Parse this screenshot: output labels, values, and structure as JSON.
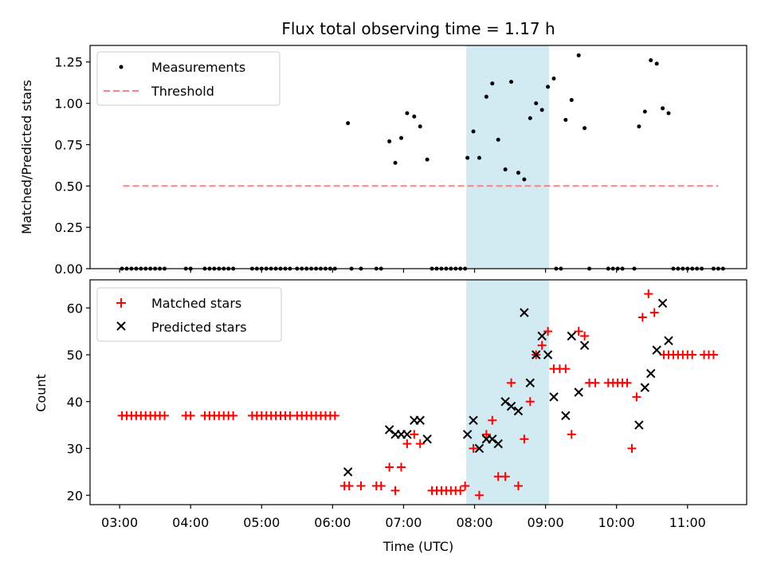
{
  "chart_data": [
    {
      "type": "scatter",
      "title": "Flux total observing time = 1.17 h",
      "xlabel": "",
      "ylabel": "Matched/Predicted stars",
      "xlim": [
        "02:35",
        "11:50"
      ],
      "ylim": [
        0.0,
        1.35
      ],
      "yticks": [
        0.0,
        0.25,
        0.5,
        0.75,
        1.0,
        1.25
      ],
      "ytick_labels": [
        "0.00",
        "0.25",
        "0.50",
        "0.75",
        "1.00",
        "1.25"
      ],
      "shaded_region": {
        "x_start": "07:53",
        "x_end": "09:03",
        "color": "#add8e6"
      },
      "legend_position": "top-left",
      "series": [
        {
          "name": "Measurements",
          "marker": "dot",
          "color": "#000000",
          "points": [
            [
              "03:02",
              0
            ],
            [
              "03:06",
              0
            ],
            [
              "03:10",
              0
            ],
            [
              "03:14",
              0
            ],
            [
              "03:18",
              0
            ],
            [
              "03:22",
              0
            ],
            [
              "03:26",
              0
            ],
            [
              "03:30",
              0
            ],
            [
              "03:34",
              0
            ],
            [
              "03:38",
              0
            ],
            [
              "03:56",
              0
            ],
            [
              "04:00",
              0
            ],
            [
              "04:12",
              0
            ],
            [
              "04:16",
              0
            ],
            [
              "04:20",
              0
            ],
            [
              "04:24",
              0
            ],
            [
              "04:28",
              0
            ],
            [
              "04:32",
              0
            ],
            [
              "04:36",
              0
            ],
            [
              "04:52",
              0
            ],
            [
              "04:56",
              0
            ],
            [
              "05:00",
              0
            ],
            [
              "05:04",
              0
            ],
            [
              "05:08",
              0
            ],
            [
              "05:12",
              0
            ],
            [
              "05:16",
              0
            ],
            [
              "05:20",
              0
            ],
            [
              "05:24",
              0
            ],
            [
              "05:30",
              0
            ],
            [
              "05:34",
              0
            ],
            [
              "05:38",
              0
            ],
            [
              "05:42",
              0
            ],
            [
              "05:46",
              0
            ],
            [
              "05:50",
              0
            ],
            [
              "05:54",
              0
            ],
            [
              "05:58",
              0
            ],
            [
              "06:02",
              0
            ],
            [
              "06:13",
              0.88
            ],
            [
              "06:16",
              0
            ],
            [
              "06:24",
              0
            ],
            [
              "06:37",
              0
            ],
            [
              "06:41",
              0
            ],
            [
              "06:48",
              0.77
            ],
            [
              "06:53",
              0.64
            ],
            [
              "06:58",
              0.79
            ],
            [
              "07:03",
              0.94
            ],
            [
              "07:09",
              0.92
            ],
            [
              "07:14",
              0.86
            ],
            [
              "07:20",
              0.66
            ],
            [
              "07:24",
              0
            ],
            [
              "07:28",
              0
            ],
            [
              "07:32",
              0
            ],
            [
              "07:36",
              0
            ],
            [
              "07:40",
              0
            ],
            [
              "07:44",
              0
            ],
            [
              "07:48",
              0
            ],
            [
              "07:52",
              0
            ],
            [
              "07:54",
              0.67
            ],
            [
              "07:59",
              0.83
            ],
            [
              "08:04",
              0.67
            ],
            [
              "08:10",
              1.04
            ],
            [
              "08:15",
              1.12
            ],
            [
              "08:20",
              0.78
            ],
            [
              "08:26",
              0.6
            ],
            [
              "08:31",
              1.13
            ],
            [
              "08:37",
              0.58
            ],
            [
              "08:42",
              0.54
            ],
            [
              "08:47",
              0.91
            ],
            [
              "08:52",
              1.0
            ],
            [
              "08:57",
              0.96
            ],
            [
              "09:02",
              1.1
            ],
            [
              "09:07",
              1.15
            ],
            [
              "09:09",
              0
            ],
            [
              "09:13",
              0
            ],
            [
              "09:17",
              0.9
            ],
            [
              "09:22",
              1.02
            ],
            [
              "09:28",
              1.29
            ],
            [
              "09:33",
              0.85
            ],
            [
              "09:37",
              0
            ],
            [
              "09:53",
              0
            ],
            [
              "09:57",
              0
            ],
            [
              "10:01",
              0
            ],
            [
              "10:05",
              0
            ],
            [
              "10:15",
              0
            ],
            [
              "10:19",
              0.86
            ],
            [
              "10:24",
              0.95
            ],
            [
              "10:29",
              1.26
            ],
            [
              "10:34",
              1.24
            ],
            [
              "10:39",
              0.97
            ],
            [
              "10:44",
              0.94
            ],
            [
              "10:48",
              0
            ],
            [
              "10:52",
              0
            ],
            [
              "10:56",
              0
            ],
            [
              "11:00",
              0
            ],
            [
              "11:04",
              0
            ],
            [
              "11:08",
              0
            ],
            [
              "11:12",
              0
            ],
            [
              "11:22",
              0
            ],
            [
              "11:26",
              0
            ],
            [
              "11:30",
              0
            ]
          ]
        },
        {
          "name": "Threshold",
          "style": "dashed-line",
          "color": "#ff8080",
          "points": [
            [
              "03:03",
              0.5
            ],
            [
              "11:26",
              0.5
            ]
          ]
        }
      ]
    },
    {
      "type": "scatter",
      "title": "",
      "xlabel": "Time (UTC)",
      "ylabel": "Count",
      "xlim": [
        "02:35",
        "11:50"
      ],
      "ylim": [
        18,
        66
      ],
      "yticks": [
        20,
        30,
        40,
        50,
        60
      ],
      "ytick_labels": [
        "20",
        "30",
        "40",
        "50",
        "60"
      ],
      "xticks": [
        "03:00",
        "04:00",
        "05:00",
        "06:00",
        "07:00",
        "08:00",
        "09:00",
        "10:00",
        "11:00"
      ],
      "shaded_region": {
        "x_start": "07:53",
        "x_end": "09:03",
        "color": "#add8e6"
      },
      "legend_position": "top-left",
      "series": [
        {
          "name": "Matched stars",
          "marker": "plus",
          "color": "#ff0000",
          "points": [
            [
              "03:02",
              37
            ],
            [
              "03:06",
              37
            ],
            [
              "03:10",
              37
            ],
            [
              "03:14",
              37
            ],
            [
              "03:18",
              37
            ],
            [
              "03:22",
              37
            ],
            [
              "03:26",
              37
            ],
            [
              "03:30",
              37
            ],
            [
              "03:34",
              37
            ],
            [
              "03:38",
              37
            ],
            [
              "03:56",
              37
            ],
            [
              "04:00",
              37
            ],
            [
              "04:12",
              37
            ],
            [
              "04:16",
              37
            ],
            [
              "04:20",
              37
            ],
            [
              "04:24",
              37
            ],
            [
              "04:28",
              37
            ],
            [
              "04:32",
              37
            ],
            [
              "04:36",
              37
            ],
            [
              "04:52",
              37
            ],
            [
              "04:56",
              37
            ],
            [
              "05:00",
              37
            ],
            [
              "05:04",
              37
            ],
            [
              "05:08",
              37
            ],
            [
              "05:12",
              37
            ],
            [
              "05:16",
              37
            ],
            [
              "05:20",
              37
            ],
            [
              "05:24",
              37
            ],
            [
              "05:30",
              37
            ],
            [
              "05:34",
              37
            ],
            [
              "05:38",
              37
            ],
            [
              "05:42",
              37
            ],
            [
              "05:46",
              37
            ],
            [
              "05:50",
              37
            ],
            [
              "05:54",
              37
            ],
            [
              "05:58",
              37
            ],
            [
              "06:02",
              37
            ],
            [
              "06:10",
              22
            ],
            [
              "06:14",
              22
            ],
            [
              "06:24",
              22
            ],
            [
              "06:37",
              22
            ],
            [
              "06:41",
              22
            ],
            [
              "06:48",
              26
            ],
            [
              "06:53",
              21
            ],
            [
              "06:58",
              26
            ],
            [
              "07:03",
              31
            ],
            [
              "07:09",
              33
            ],
            [
              "07:14",
              31
            ],
            [
              "07:24",
              21
            ],
            [
              "07:28",
              21
            ],
            [
              "07:32",
              21
            ],
            [
              "07:36",
              21
            ],
            [
              "07:40",
              21
            ],
            [
              "07:44",
              21
            ],
            [
              "07:48",
              21
            ],
            [
              "07:52",
              22
            ],
            [
              "07:59",
              30
            ],
            [
              "08:04",
              20
            ],
            [
              "08:10",
              33
            ],
            [
              "08:15",
              36
            ],
            [
              "08:20",
              24
            ],
            [
              "08:26",
              24
            ],
            [
              "08:31",
              44
            ],
            [
              "08:37",
              22
            ],
            [
              "08:42",
              32
            ],
            [
              "08:47",
              40
            ],
            [
              "08:52",
              50
            ],
            [
              "08:57",
              52
            ],
            [
              "09:02",
              55
            ],
            [
              "09:07",
              47
            ],
            [
              "09:12",
              47
            ],
            [
              "09:17",
              47
            ],
            [
              "09:22",
              33
            ],
            [
              "09:28",
              55
            ],
            [
              "09:33",
              54
            ],
            [
              "09:37",
              44
            ],
            [
              "09:42",
              44
            ],
            [
              "09:53",
              44
            ],
            [
              "09:57",
              44
            ],
            [
              "10:01",
              44
            ],
            [
              "10:05",
              44
            ],
            [
              "10:09",
              44
            ],
            [
              "10:13",
              30
            ],
            [
              "10:17",
              41
            ],
            [
              "10:22",
              58
            ],
            [
              "10:27",
              63
            ],
            [
              "10:32",
              59
            ],
            [
              "10:40",
              50
            ],
            [
              "10:44",
              50
            ],
            [
              "10:48",
              50
            ],
            [
              "10:52",
              50
            ],
            [
              "10:56",
              50
            ],
            [
              "11:00",
              50
            ],
            [
              "11:04",
              50
            ],
            [
              "11:14",
              50
            ],
            [
              "11:18",
              50
            ],
            [
              "11:22",
              50
            ]
          ]
        },
        {
          "name": "Predicted stars",
          "marker": "x",
          "color": "#000000",
          "points": [
            [
              "06:13",
              25
            ],
            [
              "06:48",
              34
            ],
            [
              "06:53",
              33
            ],
            [
              "06:58",
              33
            ],
            [
              "07:03",
              33
            ],
            [
              "07:09",
              36
            ],
            [
              "07:14",
              36
            ],
            [
              "07:20",
              32
            ],
            [
              "07:54",
              33
            ],
            [
              "07:59",
              36
            ],
            [
              "08:04",
              30
            ],
            [
              "08:10",
              32
            ],
            [
              "08:15",
              32
            ],
            [
              "08:20",
              31
            ],
            [
              "08:26",
              40
            ],
            [
              "08:31",
              39
            ],
            [
              "08:37",
              38
            ],
            [
              "08:42",
              59
            ],
            [
              "08:47",
              44
            ],
            [
              "08:52",
              50
            ],
            [
              "08:57",
              54
            ],
            [
              "09:02",
              50
            ],
            [
              "09:07",
              41
            ],
            [
              "09:17",
              37
            ],
            [
              "09:22",
              54
            ],
            [
              "09:28",
              42
            ],
            [
              "09:33",
              52
            ],
            [
              "10:19",
              35
            ],
            [
              "10:24",
              43
            ],
            [
              "10:29",
              46
            ],
            [
              "10:34",
              51
            ],
            [
              "10:39",
              61
            ],
            [
              "10:44",
              53
            ]
          ]
        }
      ]
    }
  ]
}
